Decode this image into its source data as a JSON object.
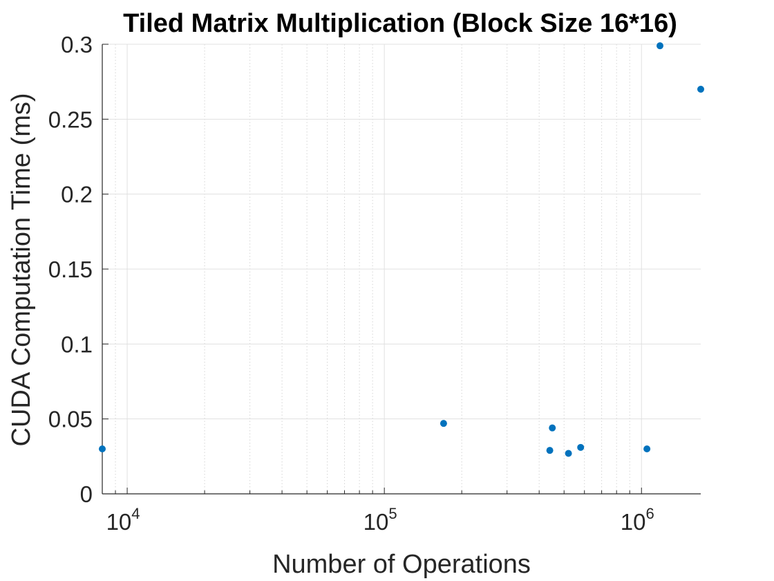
{
  "chart_data": {
    "type": "scatter",
    "title": "Tiled Matrix Multiplication (Block Size 16*16)",
    "xlabel": "Number of Operations",
    "ylabel": "CUDA Computation Time (ms)",
    "x_scale": "log",
    "xlim": [
      8000,
      1700000
    ],
    "ylim": [
      0,
      0.3
    ],
    "grid": true,
    "color": "#0072BD",
    "x_ticks": [
      {
        "base": "10",
        "exp": "4",
        "value": 10000
      },
      {
        "base": "10",
        "exp": "5",
        "value": 100000
      },
      {
        "base": "10",
        "exp": "6",
        "value": 1000000
      }
    ],
    "y_ticks": [
      {
        "label": "0",
        "value": 0
      },
      {
        "label": "0.05",
        "value": 0.05
      },
      {
        "label": "0.1",
        "value": 0.1
      },
      {
        "label": "0.15",
        "value": 0.15
      },
      {
        "label": "0.2",
        "value": 0.2
      },
      {
        "label": "0.25",
        "value": 0.25
      },
      {
        "label": "0.3",
        "value": 0.3
      }
    ],
    "points": [
      {
        "x": 8000,
        "y": 0.03
      },
      {
        "x": 170000,
        "y": 0.047
      },
      {
        "x": 440000,
        "y": 0.029
      },
      {
        "x": 450000,
        "y": 0.044
      },
      {
        "x": 520000,
        "y": 0.027
      },
      {
        "x": 580000,
        "y": 0.031
      },
      {
        "x": 1050000,
        "y": 0.03
      },
      {
        "x": 1180000,
        "y": 0.299
      },
      {
        "x": 1700000,
        "y": 0.27
      }
    ]
  }
}
